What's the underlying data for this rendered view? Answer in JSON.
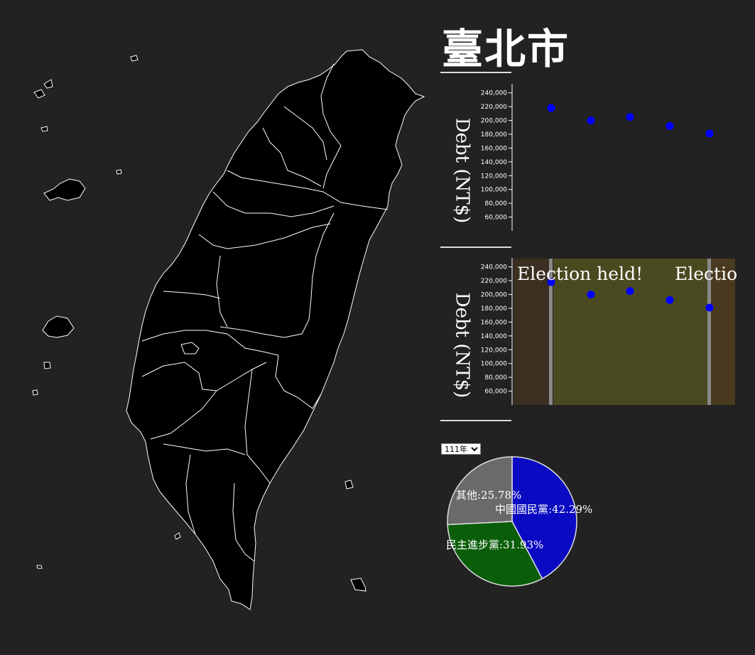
{
  "title": "臺北市",
  "charts": {
    "top": {
      "ylabel": "Debt (NT$)"
    },
    "bottom": {
      "ylabel": "Debt (NT$)",
      "annotations": [
        "Election held!",
        "Electio"
      ]
    }
  },
  "year_select": {
    "selected": "111年"
  },
  "colors": {
    "background": "#222222",
    "points": "#0000ff",
    "band_a": "#3a2f20",
    "band_b": "#4a4a20",
    "band_c": "#4a3a20",
    "election_line": "#888888",
    "kmt": "#0a0ac2",
    "dpp": "#0a5e0a",
    "other": "#6a6a6a"
  },
  "chart_data": [
    {
      "type": "scatter",
      "ylabel": "Debt (NT$)",
      "yticks": [
        60000,
        80000,
        100000,
        120000,
        140000,
        160000,
        180000,
        200000,
        220000,
        240000
      ],
      "ylim": [
        40000,
        250000
      ],
      "points": [
        218000,
        200000,
        205000,
        192000,
        181000
      ]
    },
    {
      "type": "scatter",
      "ylabel": "Debt (NT$)",
      "yticks": [
        60000,
        80000,
        100000,
        120000,
        140000,
        160000,
        180000,
        200000,
        220000,
        240000
      ],
      "ylim": [
        40000,
        250000
      ],
      "points": [
        218000,
        200000,
        205000,
        192000,
        181000
      ],
      "annotations": [
        "Election held!",
        "Electio"
      ]
    },
    {
      "type": "pie",
      "slices": [
        {
          "label": "中國國民黨:42.29%",
          "value": 42.29,
          "color": "#0a0ac2"
        },
        {
          "label": "民主進步黨:31.93%",
          "value": 31.93,
          "color": "#0a5e0a"
        },
        {
          "label": "其他:25.78%",
          "value": 25.78,
          "color": "#6a6a6a"
        }
      ]
    }
  ]
}
